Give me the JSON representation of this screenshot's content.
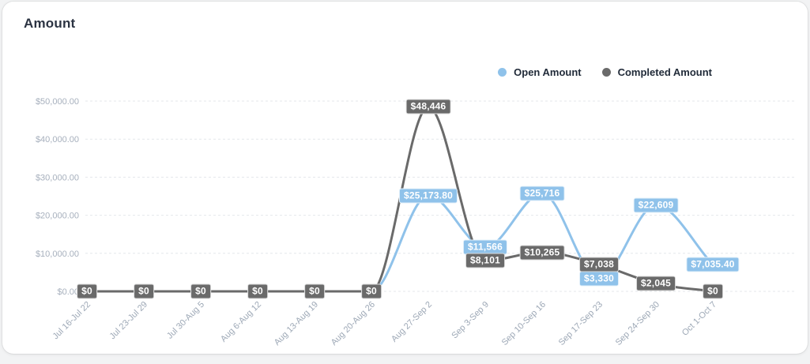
{
  "title": "Amount",
  "legend": {
    "open_label": "Open Amount",
    "completed_label": "Completed Amount"
  },
  "colors": {
    "card_bg": "#ffffff",
    "title_text": "#2b3342",
    "legend_text": "#212b39",
    "grid": "#e4e7eb",
    "y_axis_label": "#a7b0bd",
    "x_axis_label": "#9da8b6",
    "open_series": "#8fc2ea",
    "completed_series": "#6a6a6a",
    "badge_text": "#ffffff"
  },
  "chart_data": {
    "type": "line",
    "title": "Amount",
    "curve": "monotone",
    "grid": "horizontal-dashed",
    "legend_position": "top-right",
    "xlabel": "",
    "ylabel": "",
    "ylim": [
      0,
      50000
    ],
    "y_ticks": [
      "$0.00",
      "$10,000.00",
      "$20,000.00",
      "$30,000.00",
      "$40,000.00",
      "$50,000.00"
    ],
    "categories": [
      "Jul 16-Jul 22",
      "Jul 23-Jul 29",
      "Jul 30-Aug 5",
      "Aug 6-Aug 12",
      "Aug 13-Aug 19",
      "Aug 20-Aug 26",
      "Aug 27-Sep 2",
      "Sep 3-Sep 9",
      "Sep 10-Sep 16",
      "Sep 17-Sep 23",
      "Sep 24-Sep 30",
      "Oct 1-Oct 7"
    ],
    "series": [
      {
        "name": "Open Amount",
        "color": "#8fc2ea",
        "values": [
          0,
          0,
          0,
          0,
          0,
          0,
          25173.8,
          11566,
          25716,
          3330,
          22609,
          7035.4
        ],
        "labels": [
          "$0",
          "$0",
          "$0",
          "$0",
          "$0",
          "$0",
          "$25,173.80",
          "$11,566",
          "$25,716",
          "$3,330",
          "$22,609",
          "$7,035.40"
        ]
      },
      {
        "name": "Completed Amount",
        "color": "#6a6a6a",
        "values": [
          0,
          0,
          0,
          0,
          0,
          0,
          48446,
          8101,
          10265,
          7038,
          2045,
          0
        ],
        "labels": [
          "$0",
          "$0",
          "$0",
          "$0",
          "$0",
          "$0",
          "$48,446",
          "$8,101",
          "$10,265",
          "$7,038",
          "$2,045",
          "$0"
        ]
      }
    ]
  }
}
